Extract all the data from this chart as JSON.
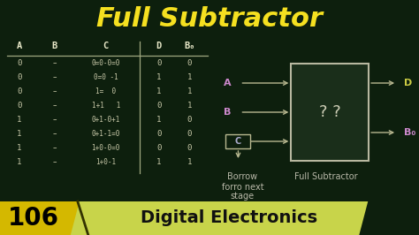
{
  "bg_color": "#0d1f0d",
  "title": "Full Subtractor",
  "title_color": "#f5e020",
  "title_fontsize": 22,
  "title_weight": "bold",
  "bottom_bar_color": "#c8d44a",
  "bottom_badge_color": "#d4b800",
  "bottom_num": "106",
  "bottom_num_color": "#000000",
  "bottom_text": "Digital Electronics",
  "bottom_text_color": "#111111",
  "table_header_color": "#e8e8c8",
  "table_color": "#c8c8a8",
  "gate_box_edge": "#b8b8a0",
  "gate_box_face": "#1a2e1a",
  "gate_label": "? ?",
  "gate_label_color": "#d0d0b8",
  "input_label_A_color": "#cc88cc",
  "input_label_B_color": "#cc88cc",
  "input_label_C_color": "#aaaacc",
  "output_label_D_color": "#cccc44",
  "output_label_Bo_color": "#cc88cc",
  "line_color": "#b8b890",
  "divider_color": "#a0a880",
  "borrow_color": "#b8b8a8",
  "d_col": [
    0,
    1,
    1,
    0,
    1,
    0,
    0,
    1
  ],
  "b0_col": [
    0,
    1,
    1,
    1,
    0,
    0,
    0,
    1
  ],
  "a_col": [
    "0",
    "0",
    "0",
    "0",
    "1",
    "1",
    "1",
    "1"
  ],
  "expr_col": [
    "0=0-0=0",
    "0=0 -1",
    "1=  0",
    "1+1   1",
    "0+1-0+1",
    "0+1-1=0",
    "1+0-0=0",
    "1+0-1"
  ]
}
